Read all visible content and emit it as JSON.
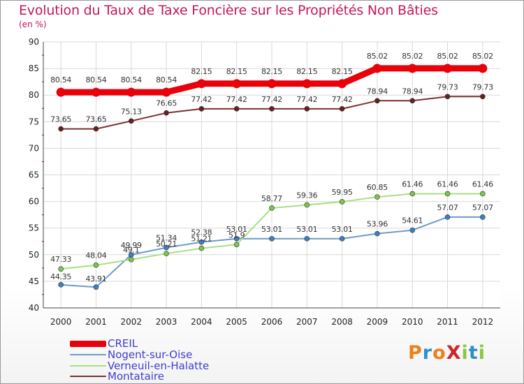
{
  "header": {
    "title": "Evolution du Taux de Taxe Foncière sur les Propriétés Non Bâties",
    "subtitle": "(en %)"
  },
  "logo": {
    "text": "Proxiti",
    "letters": [
      {
        "ch": "P",
        "color": "#ef7f1a"
      },
      {
        "ch": "r",
        "color": "#2f8fd0"
      },
      {
        "ch": "o",
        "color": "#ef7f1a"
      },
      {
        "ch": "X",
        "color": "#d2232a"
      },
      {
        "ch": "i",
        "color": "#8cc63f"
      },
      {
        "ch": "t",
        "color": "#2f8fd0"
      },
      {
        "ch": "i",
        "color": "#8cc63f"
      }
    ]
  },
  "chart_data": {
    "type": "line",
    "x": [
      "2000",
      "2001",
      "2002",
      "2003",
      "2004",
      "2005",
      "2006",
      "2007",
      "2008",
      "2009",
      "2010",
      "2011",
      "2012"
    ],
    "ylim": [
      40,
      90
    ],
    "yticks": [
      "40",
      "45",
      "50",
      "55",
      "60",
      "65",
      "70",
      "75",
      "80",
      "85",
      "90"
    ],
    "grid": true,
    "legend_position": "bottom-left",
    "series": [
      {
        "name": "CREIL",
        "color": "#e8000b",
        "marker_color": "#e8000b",
        "values": [
          80.54,
          80.54,
          80.54,
          80.54,
          82.15,
          82.15,
          82.15,
          82.15,
          82.15,
          85.02,
          85.02,
          85.02,
          85.02
        ],
        "labels": [
          "80.54",
          "80.54",
          "80.54",
          "80.54",
          "82.15",
          "82.15",
          "82.15",
          "82.15",
          "82.15",
          "85.02",
          "85.02",
          "85.02",
          "85.02"
        ]
      },
      {
        "name": "Nogent-sur-Oise",
        "color": "#6d9cc8",
        "marker_color": "#3d7fc0",
        "values": [
          44.35,
          43.91,
          49.99,
          51.34,
          52.38,
          53.01,
          53.01,
          53.01,
          53.01,
          53.96,
          54.61,
          57.07,
          57.07
        ],
        "labels": [
          "44.35",
          "43.91",
          "49.99",
          "51.34",
          "52.38",
          "53.01",
          "53.01",
          "53.01",
          "53.01",
          "53.96",
          "54.61",
          "57.07",
          "57.07"
        ]
      },
      {
        "name": "Verneuil-en-Halatte",
        "color": "#a8df84",
        "marker_color": "#7bc64a",
        "values": [
          47.33,
          48.04,
          49.1,
          50.21,
          51.21,
          51.9,
          58.77,
          59.36,
          59.95,
          60.85,
          61.46,
          61.46,
          61.46
        ],
        "labels": [
          "47.33",
          "48.04",
          "49.1",
          "50.21",
          "51.21",
          "51.9",
          "58.77",
          "59.36",
          "59.95",
          "60.85",
          "61.46",
          "61.46",
          "61.46"
        ]
      },
      {
        "name": "Montataire",
        "color": "#7a3030",
        "marker_color": "#6a1e1e",
        "values": [
          73.65,
          73.65,
          75.13,
          76.65,
          77.42,
          77.42,
          77.42,
          77.42,
          77.42,
          78.94,
          78.94,
          79.73,
          79.73
        ],
        "labels": [
          "73.65",
          "73.65",
          "75.13",
          "76.65",
          "77.42",
          "77.42",
          "77.42",
          "77.42",
          "77.42",
          "78.94",
          "78.94",
          "79.73",
          "79.73"
        ]
      }
    ]
  }
}
